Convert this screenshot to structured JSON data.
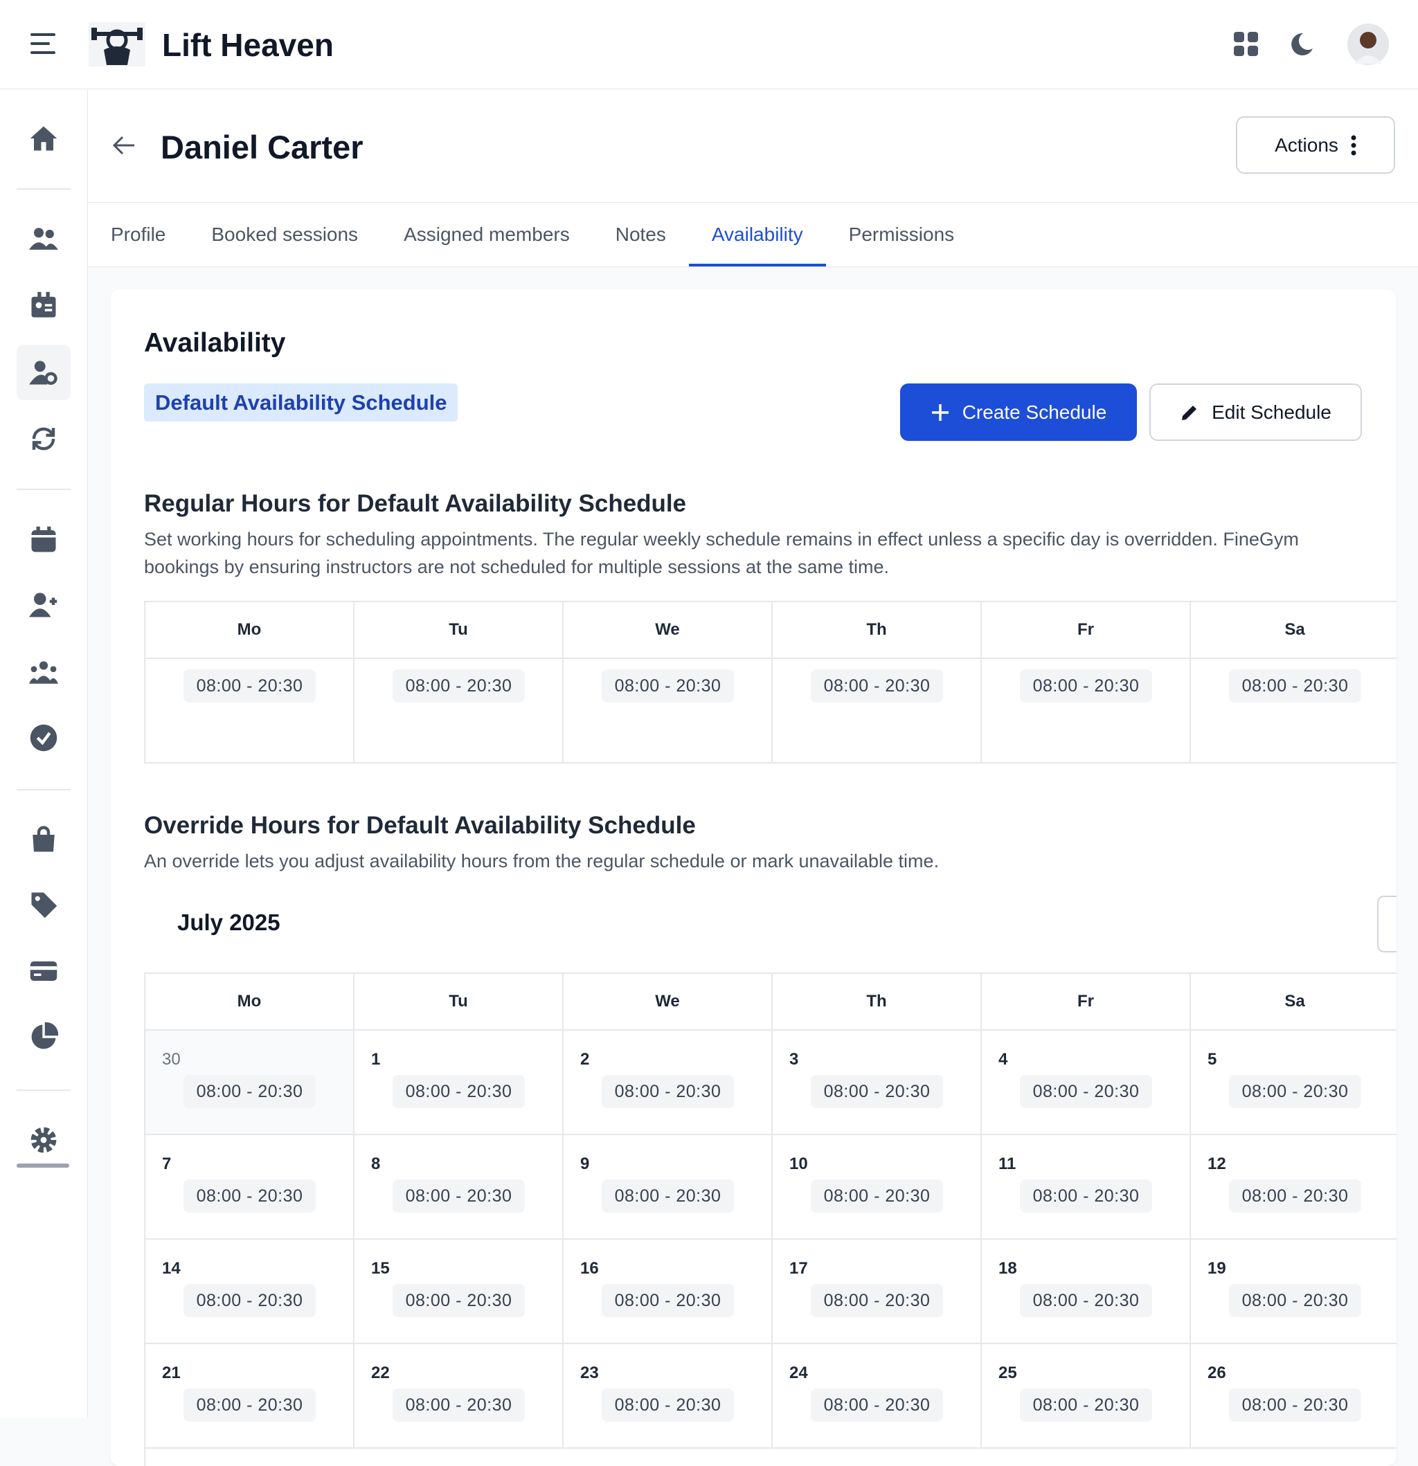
{
  "header": {
    "app_name": "Lift Heaven"
  },
  "page": {
    "title": "Daniel Carter",
    "actions_button": "Actions"
  },
  "tabs": {
    "items": [
      "Profile",
      "Booked sessions",
      "Assigned members",
      "Notes",
      "Availability",
      "Permissions"
    ],
    "active": 4
  },
  "card": {
    "title": "Availability",
    "badge": "Default Availability Schedule",
    "create_button": "Create Schedule",
    "edit_button": "Edit Schedule"
  },
  "regular": {
    "title": "Regular Hours for Default Availability Schedule",
    "description": [
      "Set working hours for scheduling appointments. The regular weekly schedule remains in effect unless a specific day is overridden. FineGym",
      "bookings by ensuring instructors are not scheduled for multiple sessions at the same time."
    ],
    "days": [
      "Mo",
      "Tu",
      "We",
      "Th",
      "Fr",
      "Sa"
    ],
    "hours": [
      "08:00 - 20:30",
      "08:00 - 20:30",
      "08:00 - 20:30",
      "08:00 - 20:30",
      "08:00 - 20:30",
      "08:00 - 20:30"
    ]
  },
  "override": {
    "title": "Override Hours for Default Availability Schedule",
    "description": "An override lets you adjust availability hours from the regular schedule or mark unavailable time.",
    "month": "July 2025",
    "days": [
      "Mo",
      "Tu",
      "We",
      "Th",
      "Fr",
      "Sa"
    ],
    "weeks": [
      [
        {
          "day": 30,
          "hours": "08:00 - 20:30",
          "outside_month": true
        },
        {
          "day": 1,
          "hours": "08:00 - 20:30"
        },
        {
          "day": 2,
          "hours": "08:00 - 20:30"
        },
        {
          "day": 3,
          "hours": "08:00 - 20:30"
        },
        {
          "day": 4,
          "hours": "08:00 - 20:30"
        },
        {
          "day": 5,
          "hours": "08:00 - 20:30"
        }
      ],
      [
        {
          "day": 7,
          "hours": "08:00 - 20:30"
        },
        {
          "day": 8,
          "hours": "08:00 - 20:30"
        },
        {
          "day": 9,
          "hours": "08:00 - 20:30"
        },
        {
          "day": 10,
          "hours": "08:00 - 20:30"
        },
        {
          "day": 11,
          "hours": "08:00 - 20:30"
        },
        {
          "day": 12,
          "hours": "08:00 - 20:30"
        }
      ],
      [
        {
          "day": 14,
          "hours": "08:00 - 20:30"
        },
        {
          "day": 15,
          "hours": "08:00 - 20:30"
        },
        {
          "day": 16,
          "hours": "08:00 - 20:30"
        },
        {
          "day": 17,
          "hours": "08:00 - 20:30"
        },
        {
          "day": 18,
          "hours": "08:00 - 20:30"
        },
        {
          "day": 19,
          "hours": "08:00 - 20:30"
        }
      ],
      [
        {
          "day": 21,
          "hours": "08:00 - 20:30"
        },
        {
          "day": 22,
          "hours": "08:00 - 20:30"
        },
        {
          "day": 23,
          "hours": "08:00 - 20:30"
        },
        {
          "day": 24,
          "hours": "08:00 - 20:30"
        },
        {
          "day": 25,
          "hours": "08:00 - 20:30"
        },
        {
          "day": 26,
          "hours": "08:00 - 20:30"
        }
      ]
    ]
  }
}
